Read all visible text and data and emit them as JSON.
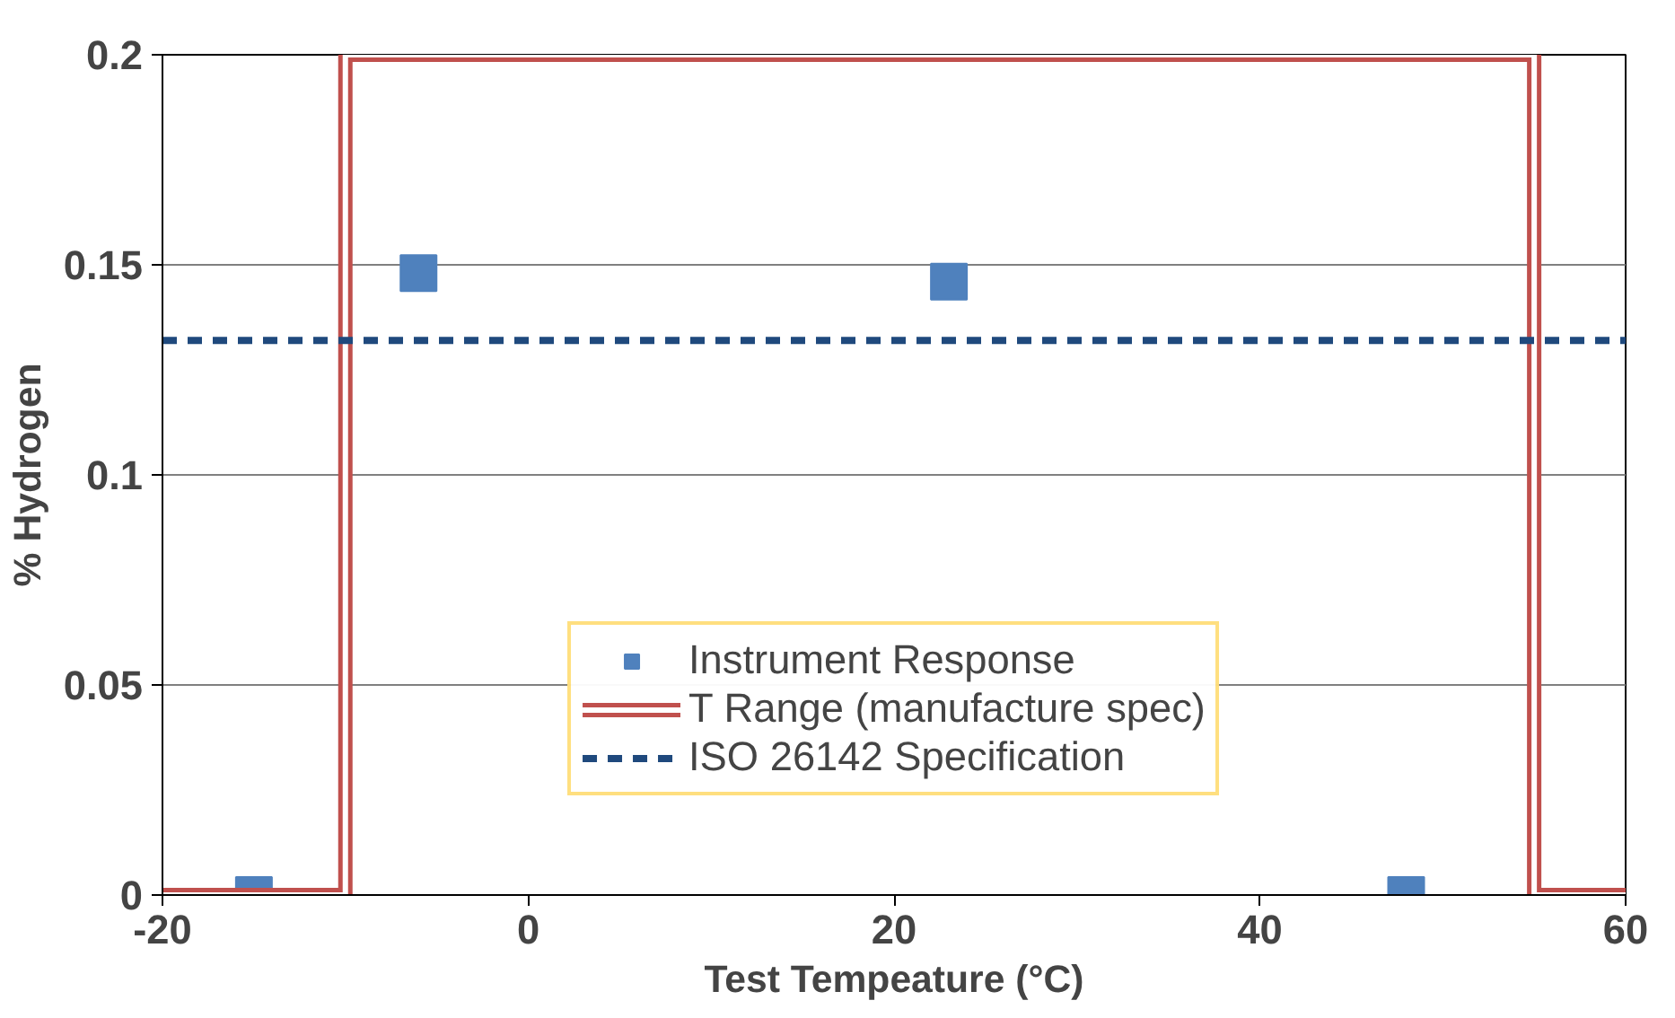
{
  "chart_data": {
    "type": "scatter",
    "xlabel": "Test Tempeature (°C)",
    "ylabel": "% Hydrogen",
    "xlim": [
      -20,
      60
    ],
    "xticks": [
      -20,
      0,
      20,
      40,
      60
    ],
    "ylim": [
      0,
      0.2
    ],
    "yticks": [
      0,
      0.05,
      {
        "value": 0.1,
        "label": "0.1"
      },
      0.15,
      {
        "value": 0.2,
        "label": "0.2"
      }
    ],
    "grid": "y",
    "legend": "bottom",
    "series": [
      {
        "name": "Instrument Response",
        "marker": "square",
        "color": "#4f81bd",
        "x": [
          -15,
          -6,
          23,
          48
        ],
        "values": [
          0,
          0.148,
          0.146,
          0
        ]
      },
      {
        "name": "T Range (manufacture spec)",
        "type": "step",
        "color": "#c0504d",
        "x": [
          -20,
          -10,
          55,
          60
        ],
        "values": [
          0,
          0.2,
          0,
          0
        ]
      }
    ],
    "ref_lines": [
      {
        "axis": "y",
        "value": 0.132,
        "label": "ISO 26142 Specification",
        "color": "#1f497d",
        "line_style": "dashed"
      }
    ]
  }
}
